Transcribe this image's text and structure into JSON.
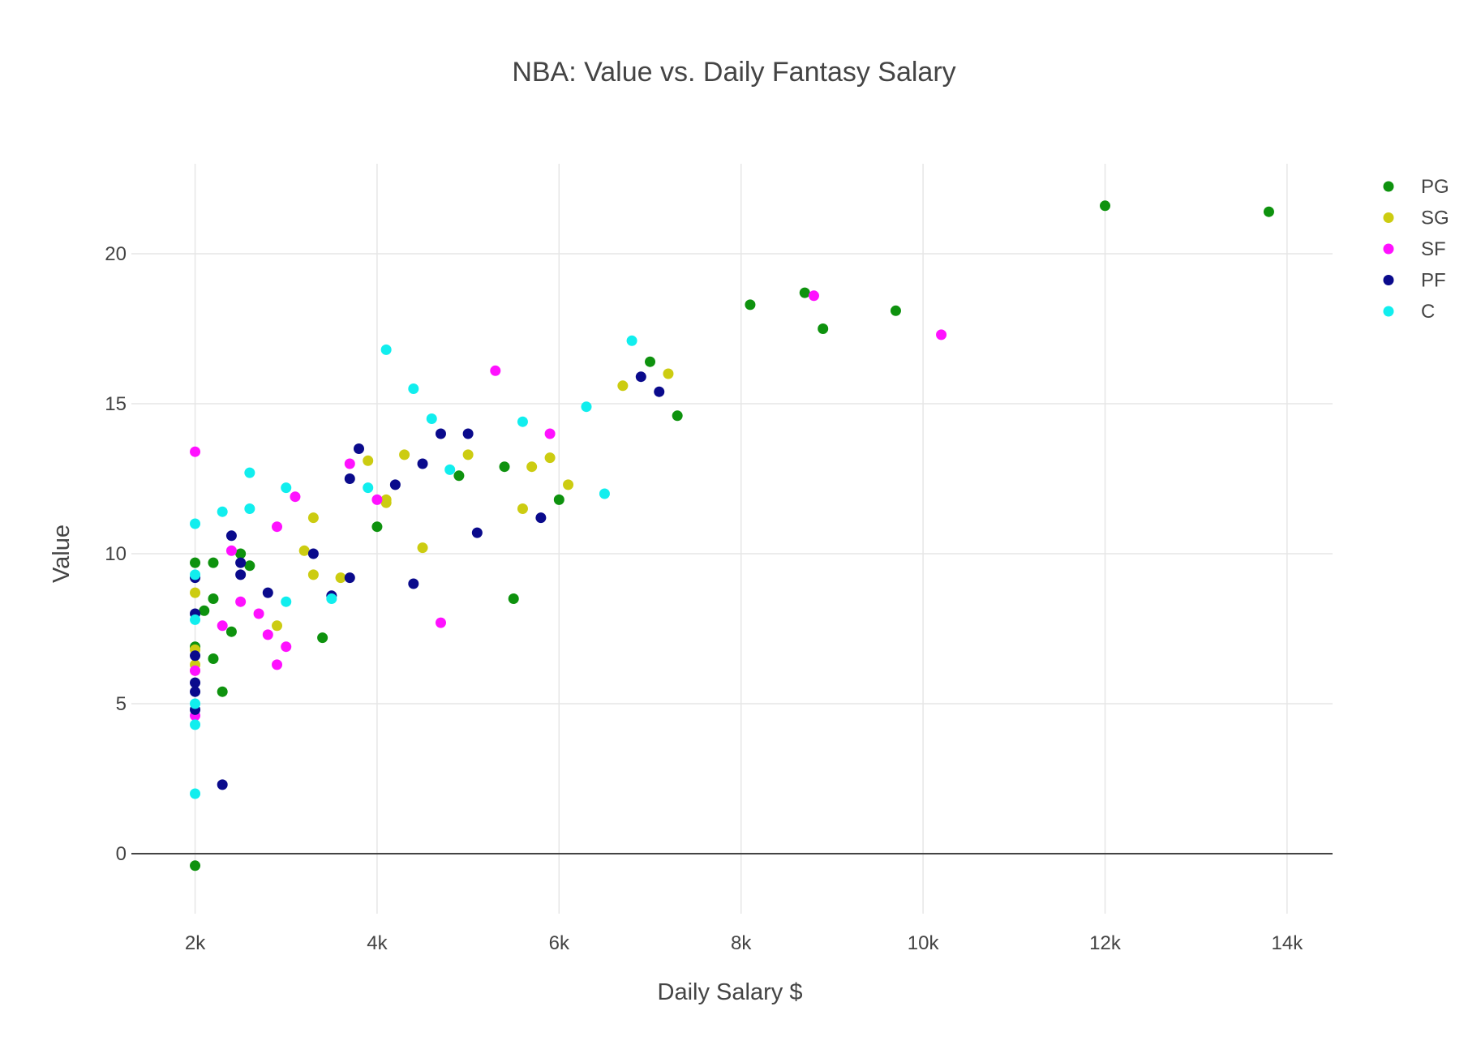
{
  "chart_data": {
    "type": "scatter",
    "title": "NBA: Value vs. Daily Fantasy Salary",
    "xlabel": "Daily Salary $",
    "ylabel": "Value",
    "xlim": [
      1300,
      14500
    ],
    "ylim": [
      -2,
      23
    ],
    "x_ticks": [
      {
        "value": 2000,
        "label": "2k"
      },
      {
        "value": 4000,
        "label": "4k"
      },
      {
        "value": 6000,
        "label": "6k"
      },
      {
        "value": 8000,
        "label": "8k"
      },
      {
        "value": 10000,
        "label": "10k"
      },
      {
        "value": 12000,
        "label": "12k"
      },
      {
        "value": 14000,
        "label": "14k"
      }
    ],
    "y_ticks": [
      {
        "value": 0,
        "label": "0"
      },
      {
        "value": 5,
        "label": "5"
      },
      {
        "value": 10,
        "label": "10"
      },
      {
        "value": 15,
        "label": "15"
      },
      {
        "value": 20,
        "label": "20"
      }
    ],
    "grid": true,
    "legend_position": "top-right",
    "series": [
      {
        "name": "PG",
        "color": "#0e920e",
        "x": [
          2000,
          2000,
          2100,
          2200,
          2200,
          2200,
          2300,
          2400,
          2500,
          2600,
          3400,
          4000,
          4900,
          5400,
          5500,
          6000,
          7000,
          7300,
          8100,
          8700,
          8900,
          9700,
          12000,
          13800,
          2000
        ],
        "y": [
          9.7,
          6.9,
          8.1,
          9.7,
          8.5,
          6.5,
          5.4,
          7.4,
          10.0,
          9.6,
          7.2,
          10.9,
          12.6,
          12.9,
          8.5,
          11.8,
          16.4,
          14.6,
          18.3,
          18.7,
          17.5,
          18.1,
          21.6,
          21.4,
          -0.4
        ]
      },
      {
        "name": "SG",
        "color": "#cccc11",
        "x": [
          2000,
          2000,
          2000,
          2000,
          2900,
          3200,
          3300,
          3300,
          3600,
          3900,
          4100,
          4100,
          4300,
          4500,
          5000,
          5600,
          5700,
          5900,
          6100,
          6700,
          7200
        ],
        "y": [
          8.7,
          6.8,
          6.3,
          6.1,
          7.6,
          10.1,
          11.2,
          9.3,
          9.2,
          13.1,
          11.8,
          11.7,
          13.3,
          10.2,
          13.3,
          11.5,
          12.9,
          13.2,
          12.3,
          15.6,
          16.0
        ]
      },
      {
        "name": "SF",
        "color": "#ff11ff",
        "x": [
          2000,
          2000,
          2000,
          2300,
          2400,
          2500,
          2700,
          2800,
          2900,
          2900,
          3000,
          3100,
          3700,
          4000,
          4700,
          5300,
          5900,
          8800,
          10200
        ],
        "y": [
          13.4,
          6.1,
          4.6,
          7.6,
          10.1,
          8.4,
          8.0,
          7.3,
          10.9,
          6.3,
          6.9,
          11.9,
          13.0,
          11.8,
          7.7,
          16.1,
          14.0,
          18.6,
          17.3
        ]
      },
      {
        "name": "PF",
        "color": "#0a0a8c",
        "x": [
          2000,
          2000,
          2000,
          2000,
          2000,
          2000,
          2300,
          2400,
          2500,
          2500,
          2800,
          3300,
          3500,
          3700,
          3700,
          3800,
          4200,
          4400,
          4500,
          4700,
          5000,
          5100,
          5800,
          6900,
          7100
        ],
        "y": [
          9.2,
          8.0,
          6.6,
          5.7,
          5.4,
          4.8,
          2.3,
          10.6,
          9.7,
          9.3,
          8.7,
          10.0,
          8.6,
          12.5,
          9.2,
          13.5,
          12.3,
          9.0,
          13.0,
          14.0,
          14.0,
          10.7,
          11.2,
          15.9,
          15.4
        ]
      },
      {
        "name": "C",
        "color": "#11eeee",
        "x": [
          2000,
          2000,
          2000,
          2000,
          2000,
          2000,
          2300,
          2600,
          2600,
          3000,
          3000,
          3500,
          3900,
          4100,
          4400,
          4600,
          4800,
          5600,
          6300,
          6500,
          6800
        ],
        "y": [
          11.0,
          9.3,
          7.8,
          5.0,
          4.3,
          2.0,
          11.4,
          12.7,
          11.5,
          12.2,
          8.4,
          8.5,
          12.2,
          16.8,
          15.5,
          14.5,
          12.8,
          14.4,
          14.9,
          12.0,
          17.1
        ]
      }
    ]
  }
}
